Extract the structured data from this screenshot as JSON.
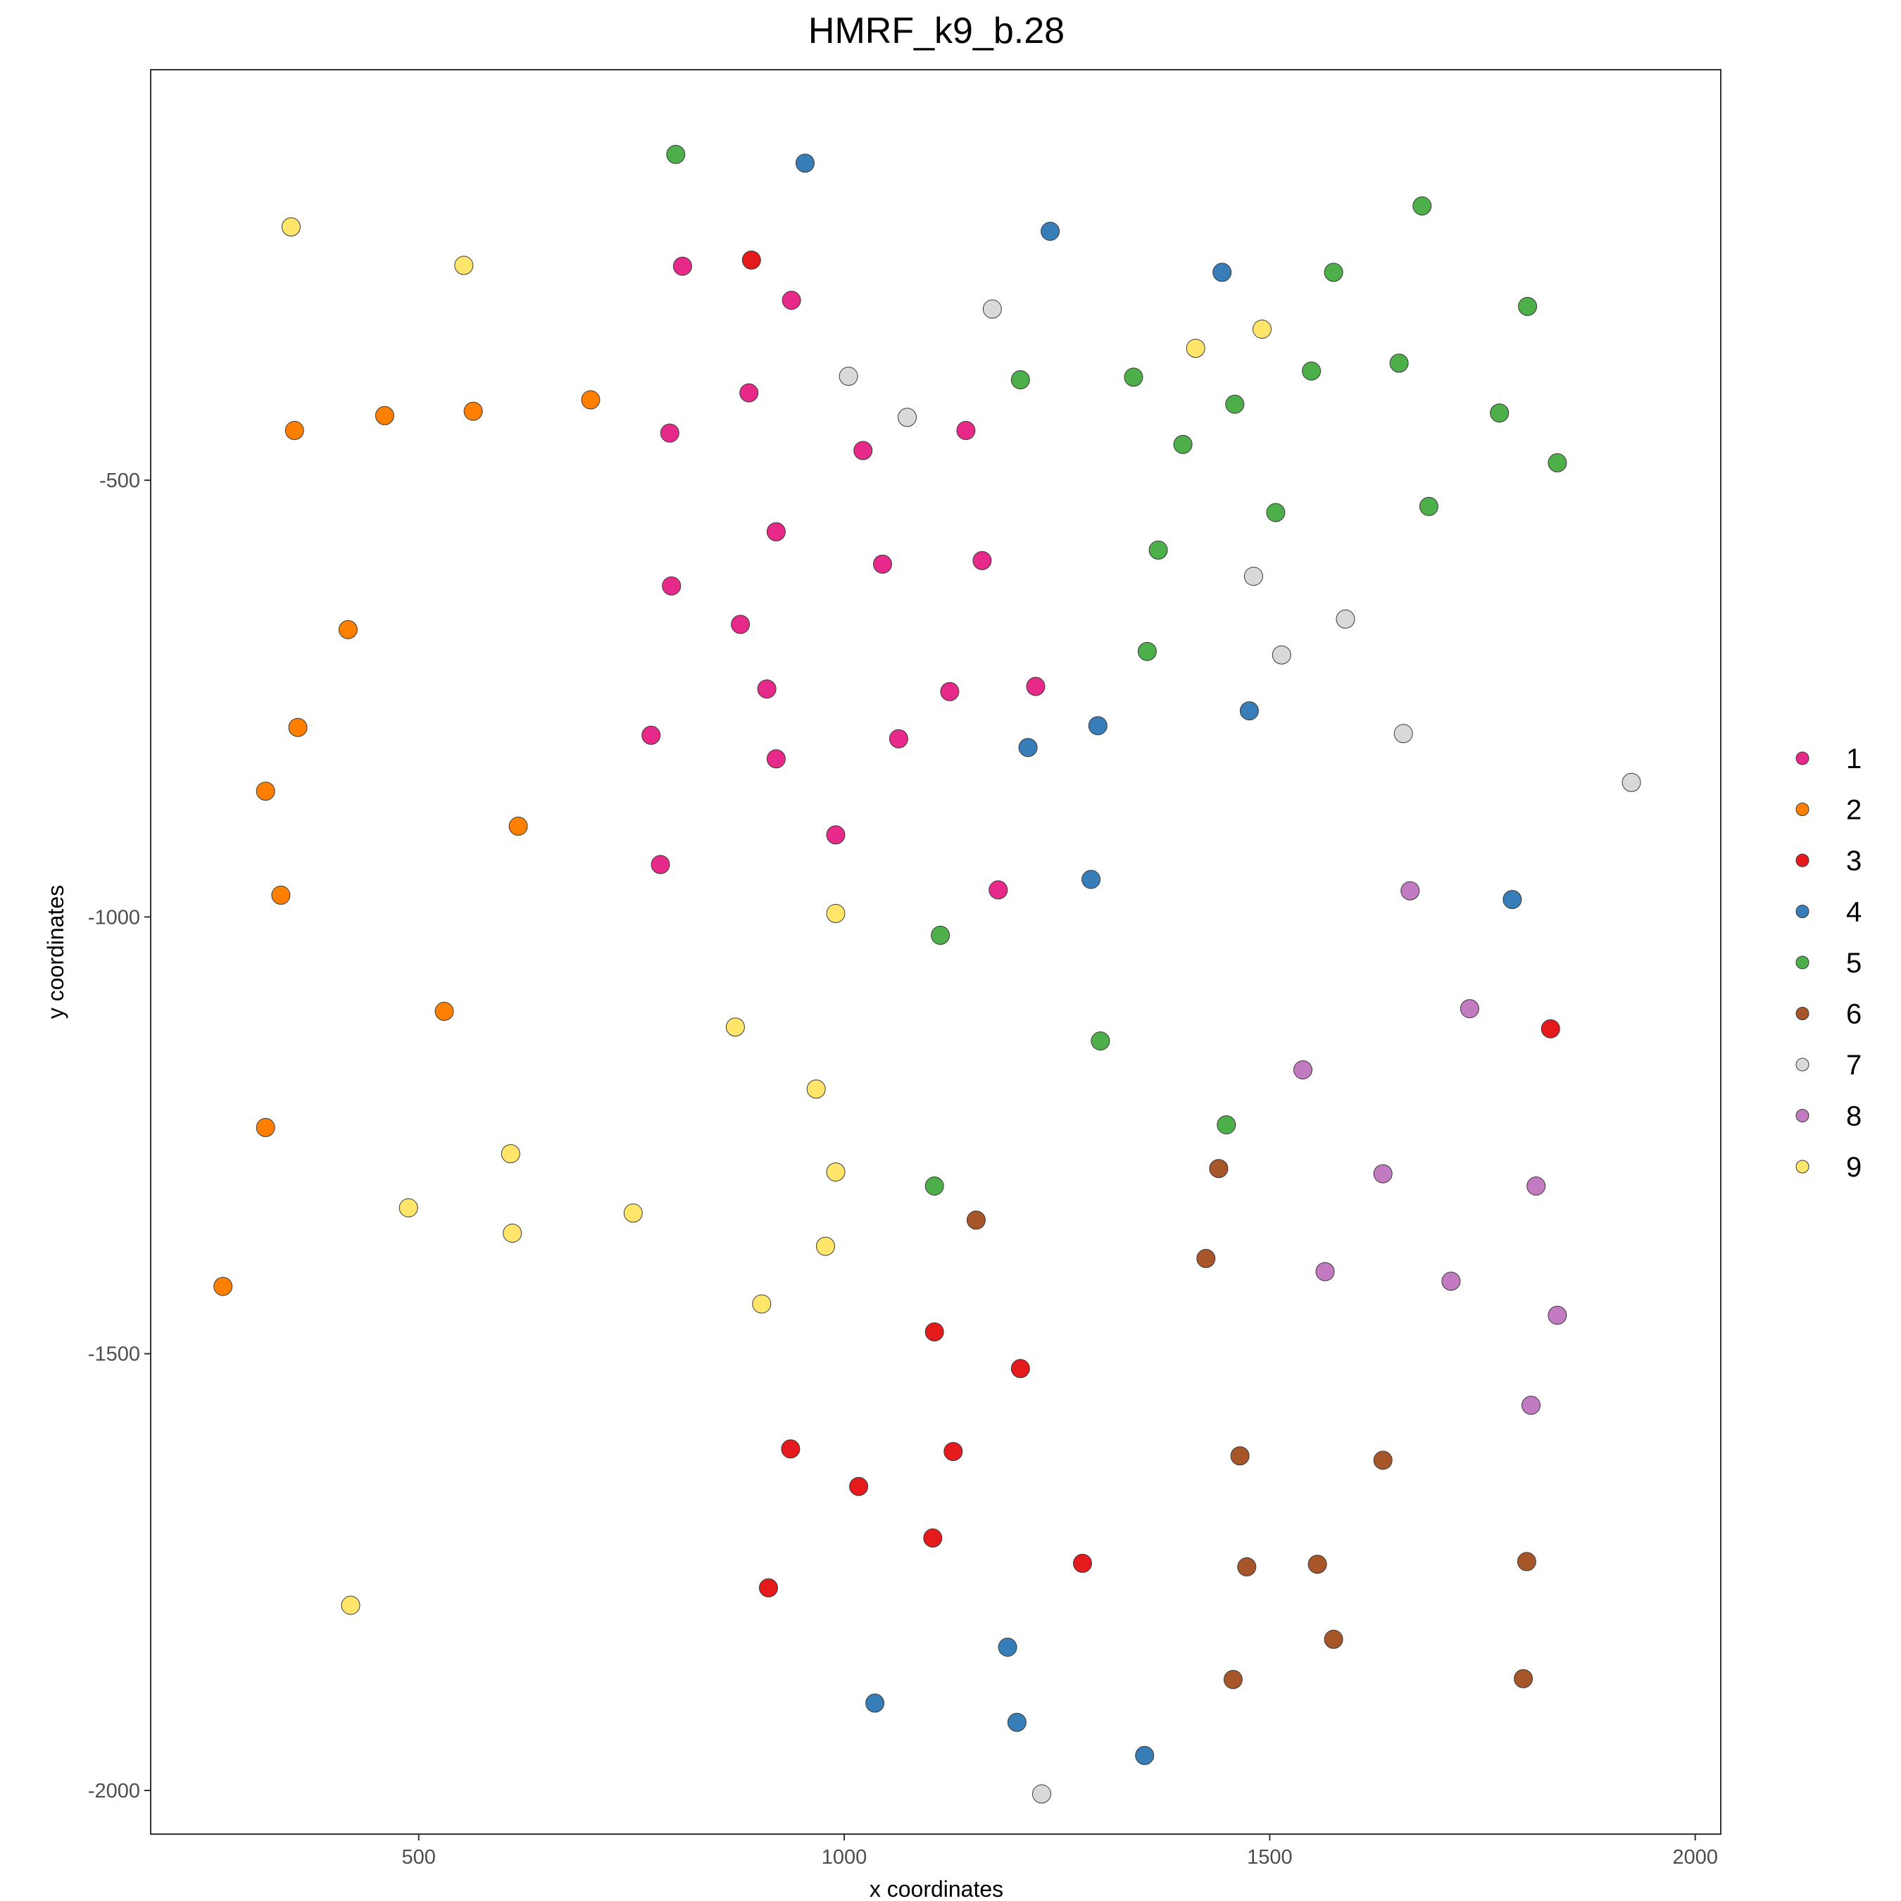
{
  "chart_data": {
    "type": "scatter",
    "title": "HMRF_k9_b.28",
    "xlabel": "x coordinates",
    "ylabel": "y coordinates",
    "xlim": [
      185,
      2030
    ],
    "ylim": [
      -2050,
      -30
    ],
    "xticks": [
      500,
      1000,
      1500,
      2000
    ],
    "yticks": [
      -500,
      -1000,
      -1500,
      -2000
    ],
    "xtick_labels": [
      "500",
      "1000",
      "1500",
      "2000"
    ],
    "ytick_labels": [
      "-500",
      "-1000",
      "-1500",
      "-2000"
    ],
    "grid": false,
    "legend_position": "right",
    "series": [
      {
        "name": "1",
        "color": "#E7298A",
        "points": [
          [
            810,
            -255
          ],
          [
            938,
            -294
          ],
          [
            888,
            -400
          ],
          [
            795,
            -446
          ],
          [
            1022,
            -466
          ],
          [
            1143,
            -443
          ],
          [
            920,
            -559
          ],
          [
            1045,
            -596
          ],
          [
            1162,
            -592
          ],
          [
            797,
            -621
          ],
          [
            878,
            -665
          ],
          [
            909,
            -739
          ],
          [
            1124,
            -742
          ],
          [
            1225,
            -736
          ],
          [
            773,
            -792
          ],
          [
            1064,
            -796
          ],
          [
            920,
            -819
          ],
          [
            990,
            -906
          ],
          [
            784,
            -940
          ],
          [
            1181,
            -969
          ]
        ]
      },
      {
        "name": "2",
        "color": "#FF7F00",
        "points": [
          [
            354,
            -443
          ],
          [
            460,
            -426
          ],
          [
            564,
            -421
          ],
          [
            702,
            -408
          ],
          [
            417,
            -671
          ],
          [
            358,
            -783
          ],
          [
            320,
            -856
          ],
          [
            617,
            -896
          ],
          [
            338,
            -975
          ],
          [
            530,
            -1108
          ],
          [
            320,
            -1241
          ],
          [
            270,
            -1423
          ]
        ]
      },
      {
        "name": "3",
        "color": "#E41A1C",
        "points": [
          [
            891,
            -248
          ],
          [
            1830,
            -1128
          ],
          [
            1106,
            -1475
          ],
          [
            1207,
            -1517
          ],
          [
            937,
            -1609
          ],
          [
            1128,
            -1612
          ],
          [
            1017,
            -1652
          ],
          [
            1104,
            -1711
          ],
          [
            1280,
            -1740
          ],
          [
            911,
            -1768
          ]
        ]
      },
      {
        "name": "4",
        "color": "#377EB8",
        "points": [
          [
            954,
            -137
          ],
          [
            1242,
            -215
          ],
          [
            1444,
            -262
          ],
          [
            1298,
            -781
          ],
          [
            1476,
            -764
          ],
          [
            1216,
            -806
          ],
          [
            1290,
            -957
          ],
          [
            1785,
            -980
          ],
          [
            1192,
            -1836
          ],
          [
            1036,
            -1900
          ],
          [
            1203,
            -1922
          ],
          [
            1353,
            -1960
          ]
        ]
      },
      {
        "name": "5",
        "color": "#4DAF4A",
        "points": [
          [
            802,
            -127
          ],
          [
            1679,
            -186
          ],
          [
            1575,
            -262
          ],
          [
            1803,
            -301
          ],
          [
            1652,
            -366
          ],
          [
            1770,
            -423
          ],
          [
            1340,
            -382
          ],
          [
            1207,
            -385
          ],
          [
            1549,
            -375
          ],
          [
            1459,
            -413
          ],
          [
            1398,
            -459
          ],
          [
            1838,
            -480
          ],
          [
            1687,
            -530
          ],
          [
            1507,
            -537
          ],
          [
            1369,
            -580
          ],
          [
            1356,
            -696
          ],
          [
            1113,
            -1021
          ],
          [
            1301,
            -1142
          ],
          [
            1449,
            -1238
          ],
          [
            1106,
            -1308
          ]
        ]
      },
      {
        "name": "6",
        "color": "#A65628",
        "points": [
          [
            1440,
            -1288
          ],
          [
            1155,
            -1347
          ],
          [
            1425,
            -1391
          ],
          [
            1465,
            -1617
          ],
          [
            1633,
            -1622
          ],
          [
            1473,
            -1744
          ],
          [
            1556,
            -1741
          ],
          [
            1802,
            -1738
          ],
          [
            1575,
            -1827
          ],
          [
            1457,
            -1873
          ],
          [
            1798,
            -1872
          ]
        ]
      },
      {
        "name": "7",
        "color": "#D9D9D9",
        "points": [
          [
            1174,
            -304
          ],
          [
            1005,
            -381
          ],
          [
            1074,
            -428
          ],
          [
            1481,
            -610
          ],
          [
            1589,
            -659
          ],
          [
            1514,
            -700
          ],
          [
            1657,
            -790
          ],
          [
            1925,
            -846
          ],
          [
            1232,
            -2004
          ]
        ]
      },
      {
        "name": "8",
        "color": "#C27AC0",
        "points": [
          [
            1665,
            -970
          ],
          [
            1735,
            -1105
          ],
          [
            1539,
            -1175
          ],
          [
            1633,
            -1294
          ],
          [
            1813,
            -1308
          ],
          [
            1565,
            -1406
          ],
          [
            1713,
            -1417
          ],
          [
            1838,
            -1456
          ],
          [
            1807,
            -1559
          ]
        ]
      },
      {
        "name": "9",
        "color": "#FFE66A",
        "points": [
          [
            350,
            -210
          ],
          [
            553,
            -254
          ],
          [
            1413,
            -349
          ],
          [
            1491,
            -327
          ],
          [
            990,
            -996
          ],
          [
            872,
            -1126
          ],
          [
            967,
            -1197
          ],
          [
            608,
            -1271
          ],
          [
            990,
            -1292
          ],
          [
            488,
            -1333
          ],
          [
            752,
            -1339
          ],
          [
            610,
            -1362
          ],
          [
            978,
            -1377
          ],
          [
            903,
            -1443
          ],
          [
            420,
            -1788
          ]
        ]
      }
    ]
  }
}
